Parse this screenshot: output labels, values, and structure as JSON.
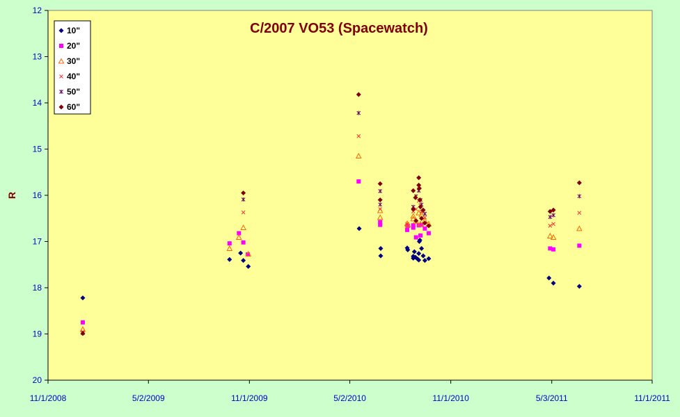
{
  "chart_data": {
    "type": "scatter",
    "title": "C/2007 VO53 (Spacewatch)",
    "xlabel": "",
    "ylabel": "R",
    "x_axis_type": "date",
    "xlim": [
      "2008-11-01",
      "2011-11-01"
    ],
    "ylim": [
      12,
      20
    ],
    "y_inverted": true,
    "grid": false,
    "legend_position": "top-left",
    "x_ticks": [
      "11/1/2008",
      "5/2/2009",
      "11/1/2009",
      "5/2/2010",
      "11/1/2010",
      "5/3/2011",
      "11/1/2011"
    ],
    "x_tick_dates": [
      "2008-11-01",
      "2009-05-02",
      "2009-11-01",
      "2010-05-02",
      "2010-11-01",
      "2011-05-03",
      "2011-11-01"
    ],
    "y_ticks": [
      "12",
      "13",
      "14",
      "15",
      "16",
      "17",
      "18",
      "19",
      "20"
    ],
    "y_tick_values": [
      12,
      13,
      14,
      15,
      16,
      17,
      18,
      19,
      20
    ],
    "colors": {
      "plot_background": "#ffff99",
      "figure_background": "#ccffcc",
      "axis_text": "#0000cc",
      "title": "#800000"
    },
    "series": [
      {
        "name": "10\"",
        "marker": "diamond",
        "color": "#000080",
        "points": [
          {
            "x": "2009-01-03",
            "y": 18.22
          },
          {
            "x": "2009-09-26",
            "y": 17.39
          },
          {
            "x": "2009-10-16",
            "y": 17.25
          },
          {
            "x": "2009-10-21",
            "y": 17.41
          },
          {
            "x": "2009-10-30",
            "y": 17.54
          },
          {
            "x": "2010-05-19",
            "y": 16.72
          },
          {
            "x": "2010-06-27",
            "y": 17.15
          },
          {
            "x": "2010-06-27",
            "y": 17.31
          },
          {
            "x": "2010-08-14",
            "y": 17.14
          },
          {
            "x": "2010-08-15",
            "y": 17.18
          },
          {
            "x": "2010-08-25",
            "y": 17.32
          },
          {
            "x": "2010-08-25",
            "y": 17.36
          },
          {
            "x": "2010-08-27",
            "y": 17.22
          },
          {
            "x": "2010-08-29",
            "y": 17.34
          },
          {
            "x": "2010-09-02",
            "y": 17.38
          },
          {
            "x": "2010-09-04",
            "y": 17.26
          },
          {
            "x": "2010-09-04",
            "y": 17.4
          },
          {
            "x": "2010-09-05",
            "y": 17.0
          },
          {
            "x": "2010-09-06",
            "y": 16.97
          },
          {
            "x": "2010-09-09",
            "y": 17.15
          },
          {
            "x": "2010-09-12",
            "y": 17.31
          },
          {
            "x": "2010-09-15",
            "y": 17.41
          },
          {
            "x": "2010-09-22",
            "y": 17.37
          },
          {
            "x": "2011-04-28",
            "y": 17.79
          },
          {
            "x": "2011-05-06",
            "y": 17.9
          },
          {
            "x": "2011-06-22",
            "y": 17.97
          }
        ]
      },
      {
        "name": "20\"",
        "marker": "square",
        "color": "#ff00ff",
        "points": [
          {
            "x": "2009-01-03",
            "y": 18.75
          },
          {
            "x": "2009-09-26",
            "y": 17.04
          },
          {
            "x": "2009-10-13",
            "y": 16.82
          },
          {
            "x": "2009-10-21",
            "y": 17.02
          },
          {
            "x": "2009-10-29",
            "y": 17.28
          },
          {
            "x": "2010-05-18",
            "y": 15.7
          },
          {
            "x": "2010-06-26",
            "y": 16.64
          },
          {
            "x": "2010-06-26",
            "y": 16.58
          },
          {
            "x": "2010-08-14",
            "y": 16.75
          },
          {
            "x": "2010-08-15",
            "y": 16.66
          },
          {
            "x": "2010-08-25",
            "y": 16.7
          },
          {
            "x": "2010-08-25",
            "y": 16.65
          },
          {
            "x": "2010-08-30",
            "y": 16.91
          },
          {
            "x": "2010-09-04",
            "y": 16.65
          },
          {
            "x": "2010-09-07",
            "y": 16.87
          },
          {
            "x": "2010-09-09",
            "y": 16.64
          },
          {
            "x": "2010-09-15",
            "y": 16.72
          },
          {
            "x": "2010-09-22",
            "y": 16.82
          },
          {
            "x": "2011-04-30",
            "y": 17.15
          },
          {
            "x": "2011-05-06",
            "y": 17.17
          },
          {
            "x": "2011-06-22",
            "y": 17.09
          }
        ]
      },
      {
        "name": "30\"",
        "marker": "triangle-open",
        "color": "#ff6600",
        "points": [
          {
            "x": "2009-01-03",
            "y": 18.9
          },
          {
            "x": "2009-09-26",
            "y": 17.15
          },
          {
            "x": "2009-10-13",
            "y": 16.91
          },
          {
            "x": "2009-10-21",
            "y": 16.7
          },
          {
            "x": "2009-10-30",
            "y": 17.27
          },
          {
            "x": "2010-05-18",
            "y": 15.15
          },
          {
            "x": "2010-06-26",
            "y": 16.48
          },
          {
            "x": "2010-06-26",
            "y": 16.33
          },
          {
            "x": "2010-08-14",
            "y": 16.61
          },
          {
            "x": "2010-08-15",
            "y": 16.64
          },
          {
            "x": "2010-08-25",
            "y": 16.45
          },
          {
            "x": "2010-08-25",
            "y": 16.51
          },
          {
            "x": "2010-08-30",
            "y": 16.56
          },
          {
            "x": "2010-09-04",
            "y": 16.38
          },
          {
            "x": "2010-09-07",
            "y": 16.62
          },
          {
            "x": "2010-09-09",
            "y": 16.42
          },
          {
            "x": "2010-09-15",
            "y": 16.55
          },
          {
            "x": "2010-09-22",
            "y": 16.62
          },
          {
            "x": "2011-04-30",
            "y": 16.88
          },
          {
            "x": "2011-05-06",
            "y": 16.91
          },
          {
            "x": "2011-06-22",
            "y": 16.72
          }
        ]
      },
      {
        "name": "40\"",
        "marker": "x",
        "color": "#ff3333",
        "points": [
          {
            "x": "2009-01-03",
            "y": 18.95
          },
          {
            "x": "2009-10-21",
            "y": 16.37
          },
          {
            "x": "2010-05-18",
            "y": 14.72
          },
          {
            "x": "2010-06-26",
            "y": 16.3
          },
          {
            "x": "2010-08-14",
            "y": 16.62
          },
          {
            "x": "2010-08-25",
            "y": 16.35
          },
          {
            "x": "2010-08-30",
            "y": 16.3
          },
          {
            "x": "2010-09-04",
            "y": 16.12
          },
          {
            "x": "2010-09-07",
            "y": 16.22
          },
          {
            "x": "2010-09-09",
            "y": 16.35
          },
          {
            "x": "2010-09-15",
            "y": 16.48
          },
          {
            "x": "2011-04-30",
            "y": 16.66
          },
          {
            "x": "2011-05-06",
            "y": 16.62
          },
          {
            "x": "2011-06-22",
            "y": 16.38
          }
        ]
      },
      {
        "name": "50\"",
        "marker": "star",
        "color": "#660066",
        "points": [
          {
            "x": "2009-01-03",
            "y": 18.98
          },
          {
            "x": "2009-10-21",
            "y": 16.09
          },
          {
            "x": "2010-05-18",
            "y": 14.22
          },
          {
            "x": "2010-06-26",
            "y": 15.91
          },
          {
            "x": "2010-06-26",
            "y": 16.2
          },
          {
            "x": "2010-08-25",
            "y": 16.25
          },
          {
            "x": "2010-08-30",
            "y": 16.02
          },
          {
            "x": "2010-09-04",
            "y": 15.9
          },
          {
            "x": "2010-09-07",
            "y": 16.1
          },
          {
            "x": "2010-09-09",
            "y": 16.2
          },
          {
            "x": "2010-09-15",
            "y": 16.4
          },
          {
            "x": "2011-04-30",
            "y": 16.47
          },
          {
            "x": "2011-05-06",
            "y": 16.43
          },
          {
            "x": "2011-06-22",
            "y": 16.02
          }
        ]
      },
      {
        "name": "60\"",
        "marker": "diamond",
        "color": "#800000",
        "points": [
          {
            "x": "2009-01-03",
            "y": 18.99
          },
          {
            "x": "2009-10-21",
            "y": 15.95
          },
          {
            "x": "2010-05-18",
            "y": 13.82
          },
          {
            "x": "2010-06-26",
            "y": 15.75
          },
          {
            "x": "2010-06-26",
            "y": 16.1
          },
          {
            "x": "2010-08-25",
            "y": 15.9
          },
          {
            "x": "2010-08-25",
            "y": 16.3
          },
          {
            "x": "2010-08-29",
            "y": 16.05
          },
          {
            "x": "2010-08-30",
            "y": 16.55
          },
          {
            "x": "2010-09-04",
            "y": 15.62
          },
          {
            "x": "2010-09-04",
            "y": 15.78
          },
          {
            "x": "2010-09-05",
            "y": 15.85
          },
          {
            "x": "2010-09-06",
            "y": 16.1
          },
          {
            "x": "2010-09-07",
            "y": 16.25
          },
          {
            "x": "2010-09-09",
            "y": 16.5
          },
          {
            "x": "2010-09-12",
            "y": 16.32
          },
          {
            "x": "2010-09-15",
            "y": 16.6
          },
          {
            "x": "2010-09-22",
            "y": 16.66
          },
          {
            "x": "2011-04-30",
            "y": 16.35
          },
          {
            "x": "2011-05-06",
            "y": 16.32
          },
          {
            "x": "2011-06-22",
            "y": 15.73
          }
        ]
      }
    ]
  }
}
